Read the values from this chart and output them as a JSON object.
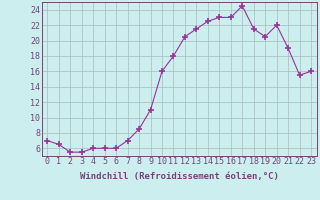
{
  "x": [
    0,
    1,
    2,
    3,
    4,
    5,
    6,
    7,
    8,
    9,
    10,
    11,
    12,
    13,
    14,
    15,
    16,
    17,
    18,
    19,
    20,
    21,
    22,
    23
  ],
  "y": [
    7.0,
    6.5,
    5.5,
    5.5,
    6.0,
    6.0,
    6.0,
    7.0,
    8.5,
    11.0,
    16.0,
    18.0,
    20.5,
    21.5,
    22.5,
    23.0,
    23.0,
    24.5,
    21.5,
    20.5,
    22.0,
    19.0,
    15.5,
    16.0
  ],
  "line_color": "#993399",
  "marker": "+",
  "marker_size": 4,
  "marker_lw": 1.2,
  "bg_color": "#cceeee",
  "grid_color": "#aabbbb",
  "xlabel": "Windchill (Refroidissement éolien,°C)",
  "xlim": [
    -0.5,
    23.5
  ],
  "ylim": [
    5.0,
    25.0
  ],
  "yticks": [
    6,
    8,
    10,
    12,
    14,
    16,
    18,
    20,
    22,
    24
  ],
  "xticks": [
    0,
    1,
    2,
    3,
    4,
    5,
    6,
    7,
    8,
    9,
    10,
    11,
    12,
    13,
    14,
    15,
    16,
    17,
    18,
    19,
    20,
    21,
    22,
    23
  ],
  "label_fontsize": 6.5,
  "tick_fontsize": 6.0,
  "spine_color": "#774477"
}
